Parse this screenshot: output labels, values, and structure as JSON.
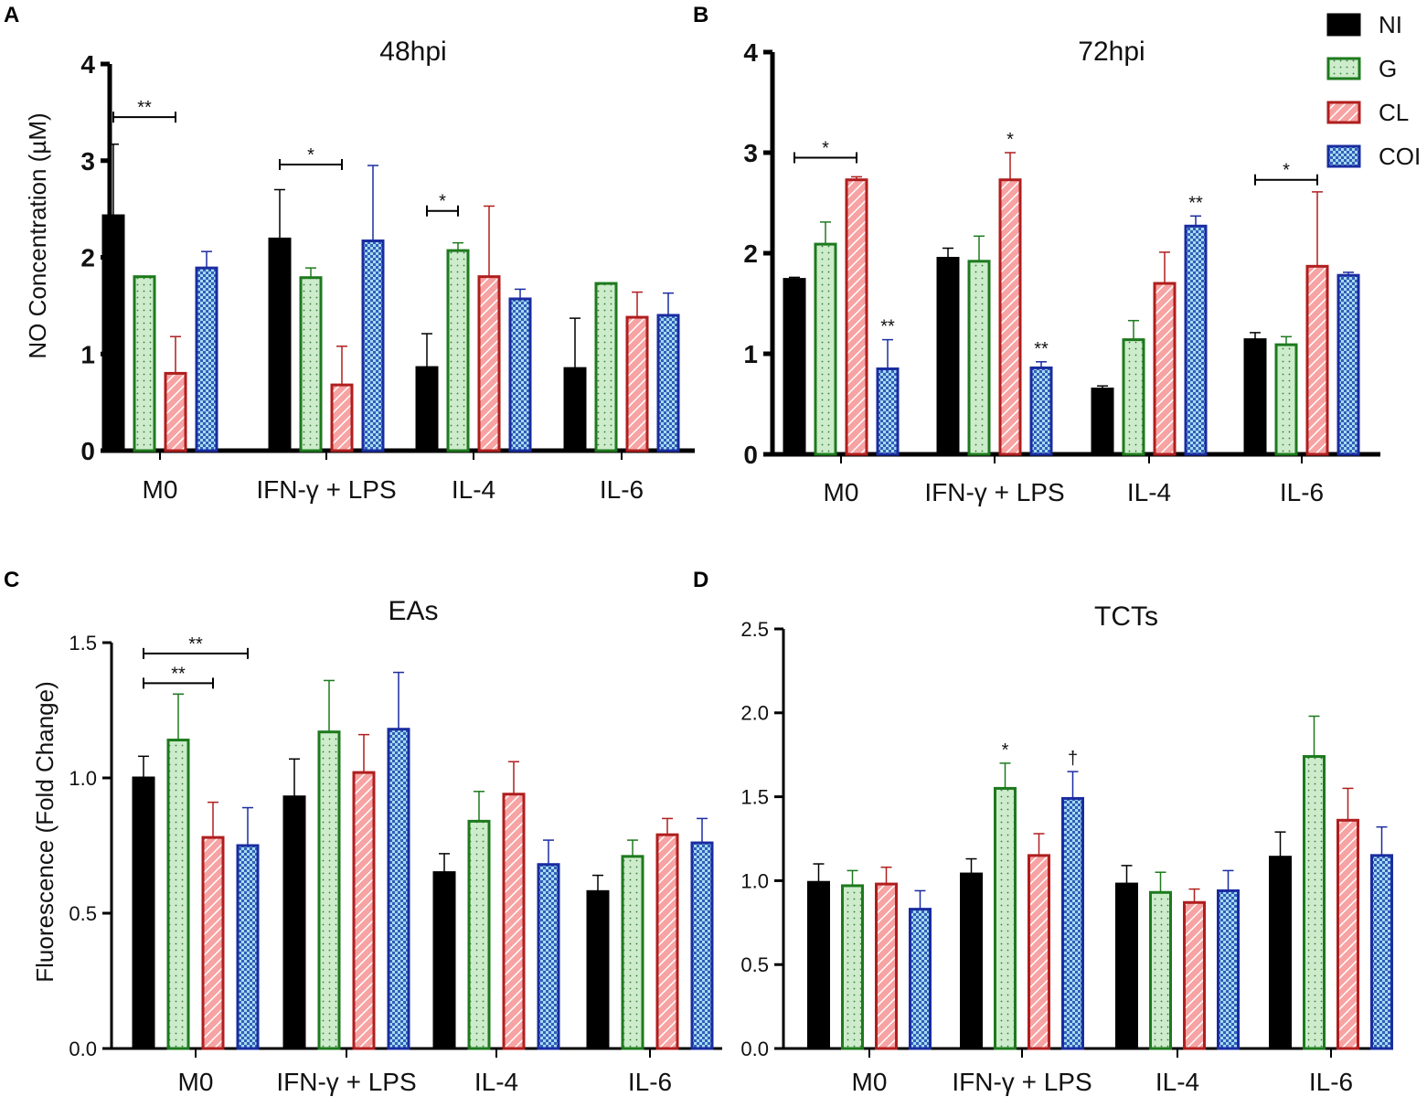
{
  "figure": {
    "legend": [
      {
        "key": "NI",
        "label": "NI",
        "fill": "#000000",
        "stroke": "#000000",
        "pattern": "solid"
      },
      {
        "key": "G",
        "label": "G",
        "fill": "#cdeccb",
        "stroke": "#1d7a1d",
        "pattern": "dots"
      },
      {
        "key": "CL",
        "label": "CL",
        "fill": "#f7a3a3",
        "stroke": "#b01e1e",
        "pattern": "hatch"
      },
      {
        "key": "COI",
        "label": "COI",
        "fill": "#a8d8f0",
        "stroke": "#1a2ca0",
        "pattern": "check"
      }
    ]
  },
  "chart_data": [
    {
      "id": "A",
      "panel_label": "A",
      "type": "bar",
      "title": "48hpi",
      "ylabel": "NO Concentration (µM)",
      "xlabel": "",
      "ylim": [
        0,
        4
      ],
      "yticks": [
        "0",
        "1",
        "2",
        "3",
        "4"
      ],
      "tick_values": [
        0,
        1,
        2,
        3,
        4
      ],
      "categories": [
        "M0",
        "IFN-γ + LPS",
        "IL-4",
        "IL-6"
      ],
      "series": [
        {
          "name": "NI",
          "values": [
            2.43,
            2.19,
            0.86,
            0.85
          ],
          "errors": [
            0.74,
            0.51,
            0.35,
            0.52
          ]
        },
        {
          "name": "G",
          "values": [
            1.8,
            1.79,
            2.07,
            1.73
          ],
          "errors": [
            0.0,
            0.1,
            0.08,
            0.0
          ]
        },
        {
          "name": "CL",
          "values": [
            0.8,
            0.68,
            1.8,
            1.38
          ],
          "errors": [
            0.38,
            0.4,
            0.73,
            0.26
          ]
        },
        {
          "name": "COI",
          "values": [
            1.89,
            2.17,
            1.57,
            1.4
          ],
          "errors": [
            0.17,
            0.78,
            0.1,
            0.23
          ]
        }
      ],
      "significance": [
        {
          "label": "**",
          "type": "bracket",
          "category": 0,
          "from": 0,
          "to": 2,
          "y": 3.45
        },
        {
          "label": "*",
          "type": "bracket",
          "category": 1,
          "from": 0,
          "to": 2,
          "y": 2.96
        },
        {
          "label": "*",
          "type": "bracket",
          "category": 2,
          "from": 0,
          "to": 1,
          "y": 2.48
        }
      ]
    },
    {
      "id": "B",
      "panel_label": "B",
      "type": "bar",
      "title": "72hpi",
      "ylabel": "",
      "xlabel": "",
      "ylim": [
        0,
        4
      ],
      "yticks": [
        "0",
        "1",
        "2",
        "3",
        "4"
      ],
      "tick_values": [
        0,
        1,
        2,
        3,
        4
      ],
      "categories": [
        "M0",
        "IFN-γ + LPS",
        "IL-4",
        "IL-6"
      ],
      "series": [
        {
          "name": "NI",
          "values": [
            1.74,
            1.95,
            0.65,
            1.14
          ],
          "errors": [
            0.02,
            0.1,
            0.03,
            0.07
          ]
        },
        {
          "name": "G",
          "values": [
            2.09,
            1.92,
            1.14,
            1.09
          ],
          "errors": [
            0.22,
            0.25,
            0.19,
            0.08
          ]
        },
        {
          "name": "CL",
          "values": [
            2.73,
            2.73,
            1.7,
            1.87
          ],
          "errors": [
            0.03,
            0.27,
            0.31,
            0.74
          ]
        },
        {
          "name": "COI",
          "values": [
            0.85,
            0.86,
            2.27,
            1.78
          ],
          "errors": [
            0.29,
            0.06,
            0.1,
            0.03
          ]
        }
      ],
      "significance": [
        {
          "label": "*",
          "type": "bracket",
          "category": 0,
          "from": 0,
          "to": 2,
          "y": 2.95
        },
        {
          "label": "**",
          "type": "star",
          "category": 0,
          "bar": 3
        },
        {
          "label": "*",
          "type": "star",
          "category": 1,
          "bar": 2
        },
        {
          "label": "**",
          "type": "star",
          "category": 1,
          "bar": 3
        },
        {
          "label": "**",
          "type": "star",
          "category": 2,
          "bar": 3
        },
        {
          "label": "*",
          "type": "bracket",
          "category": 3,
          "from": 0,
          "to": 2,
          "y": 2.73
        }
      ]
    },
    {
      "id": "C",
      "panel_label": "C",
      "type": "bar",
      "title": "EAs",
      "ylabel": "Fluorescence  (Fold Change)",
      "xlabel": "",
      "ylim": [
        0,
        1.5
      ],
      "yticks": [
        "0.0",
        "0.5",
        "1.0",
        "1.5"
      ],
      "tick_values": [
        0,
        0.5,
        1.0,
        1.5
      ],
      "categories": [
        "M0",
        "IFN-γ + LPS",
        "IL-4",
        "IL-6"
      ],
      "series": [
        {
          "name": "NI",
          "values": [
            1.0,
            0.93,
            0.65,
            0.58
          ],
          "errors": [
            0.08,
            0.14,
            0.07,
            0.06
          ]
        },
        {
          "name": "G",
          "values": [
            1.14,
            1.17,
            0.84,
            0.71
          ],
          "errors": [
            0.17,
            0.19,
            0.11,
            0.06
          ]
        },
        {
          "name": "CL",
          "values": [
            0.78,
            1.02,
            0.94,
            0.79
          ],
          "errors": [
            0.13,
            0.14,
            0.12,
            0.06
          ]
        },
        {
          "name": "COI",
          "values": [
            0.75,
            1.18,
            0.68,
            0.76
          ],
          "errors": [
            0.14,
            0.21,
            0.09,
            0.09
          ]
        }
      ],
      "significance": [
        {
          "label": "**",
          "type": "bracket",
          "category": 0,
          "from": 0,
          "to": 3,
          "y": 1.46
        },
        {
          "label": "**",
          "type": "bracket",
          "category": 0,
          "from": 0,
          "to": 2,
          "y": 1.35
        }
      ]
    },
    {
      "id": "D",
      "panel_label": "D",
      "type": "bar",
      "title": "TCTs",
      "ylabel": "",
      "xlabel": "",
      "ylim": [
        0,
        2.5
      ],
      "yticks": [
        "0.0",
        "0.5",
        "1.0",
        "1.5",
        "2.0",
        "2.5"
      ],
      "tick_values": [
        0,
        0.5,
        1.0,
        1.5,
        2.0,
        2.5
      ],
      "categories": [
        "M0",
        "IFN-γ + LPS",
        "IL-4",
        "IL-6"
      ],
      "series": [
        {
          "name": "NI",
          "values": [
            0.99,
            1.04,
            0.98,
            1.14
          ],
          "errors": [
            0.11,
            0.09,
            0.11,
            0.15
          ]
        },
        {
          "name": "G",
          "values": [
            0.97,
            1.55,
            0.93,
            1.74
          ],
          "errors": [
            0.09,
            0.15,
            0.12,
            0.24
          ]
        },
        {
          "name": "CL",
          "values": [
            0.98,
            1.15,
            0.87,
            1.36
          ],
          "errors": [
            0.1,
            0.13,
            0.08,
            0.19
          ]
        },
        {
          "name": "COI",
          "values": [
            0.83,
            1.49,
            0.94,
            1.15
          ],
          "errors": [
            0.11,
            0.16,
            0.12,
            0.17
          ]
        }
      ],
      "significance": [
        {
          "label": "*",
          "type": "star",
          "category": 1,
          "bar": 1
        },
        {
          "label": "†",
          "type": "star",
          "category": 1,
          "bar": 3
        }
      ]
    }
  ]
}
